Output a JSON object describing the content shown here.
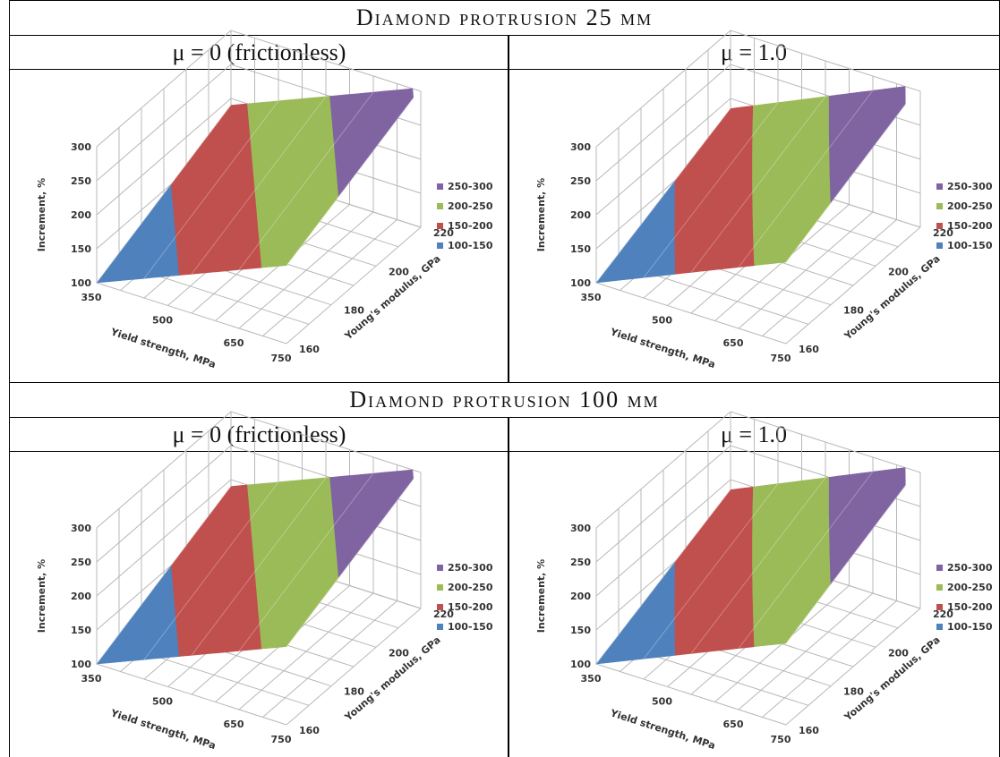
{
  "sections": [
    {
      "title": "Diamond protrusion 25 μm",
      "conditions": [
        "μ = 0 (frictionless)",
        "μ = 1.0"
      ]
    },
    {
      "title": "Diamond protrusion 100 μm",
      "conditions": [
        "μ = 0 (frictionless)",
        "μ = 1.0"
      ]
    }
  ],
  "chart_data": [
    {
      "type": "surface",
      "panel": "25 μm, μ = 0 (frictionless)",
      "xlabel": "Yield strength, MPa",
      "ylabel": "Young's modulus, GPa",
      "zlabel": "Increment, %",
      "x_ticks": [
        "350",
        "500",
        "650",
        "750"
      ],
      "y_ticks": [
        "160",
        "180",
        "200",
        "220"
      ],
      "z_ticks": [
        "100",
        "150",
        "200",
        "250",
        "300"
      ],
      "zlim": [
        100,
        300
      ],
      "legend": [
        {
          "label": "250-300",
          "color": "#8064a2"
        },
        {
          "label": "200-250",
          "color": "#9bbb59"
        },
        {
          "label": "150-200",
          "color": "#c0504d"
        },
        {
          "label": "100-150",
          "color": "#4f81bd"
        }
      ],
      "x_values": [
        350,
        750
      ],
      "y_values": [
        160,
        220
      ],
      "z_grid": [
        [
          100,
          190
        ],
        [
          215,
          305
        ]
      ]
    },
    {
      "type": "surface",
      "panel": "25 μm, μ = 1.0",
      "xlabel": "Yield strength, MPa",
      "ylabel": "Young's modulus, GPa",
      "zlabel": "Increment, %",
      "x_ticks": [
        "350",
        "500",
        "650",
        "750"
      ],
      "y_ticks": [
        "160",
        "180",
        "200",
        "220"
      ],
      "z_ticks": [
        "100",
        "150",
        "200",
        "250",
        "300"
      ],
      "zlim": [
        100,
        300
      ],
      "legend": [
        {
          "label": "250-300",
          "color": "#8064a2"
        },
        {
          "label": "200-250",
          "color": "#9bbb59"
        },
        {
          "label": "150-200",
          "color": "#c0504d"
        },
        {
          "label": "100-150",
          "color": "#4f81bd"
        }
      ],
      "x_values": [
        350,
        750
      ],
      "y_values": [
        160,
        220
      ],
      "z_grid": [
        [
          100,
          185
        ],
        [
          220,
          310
        ]
      ]
    },
    {
      "type": "surface",
      "panel": "100 μm, μ = 0 (frictionless)",
      "xlabel": "Yield strength, MPa",
      "ylabel": "Young's modulus, GPa",
      "zlabel": "Increment, %",
      "x_ticks": [
        "350",
        "500",
        "650",
        "750"
      ],
      "y_ticks": [
        "160",
        "180",
        "200",
        "220"
      ],
      "z_ticks": [
        "100",
        "150",
        "200",
        "250",
        "300"
      ],
      "zlim": [
        100,
        300
      ],
      "legend": [
        {
          "label": "250-300",
          "color": "#8064a2"
        },
        {
          "label": "200-250",
          "color": "#9bbb59"
        },
        {
          "label": "150-200",
          "color": "#c0504d"
        },
        {
          "label": "100-150",
          "color": "#4f81bd"
        }
      ],
      "x_values": [
        350,
        750
      ],
      "y_values": [
        160,
        220
      ],
      "z_grid": [
        [
          100,
          190
        ],
        [
          215,
          305
        ]
      ]
    },
    {
      "type": "surface",
      "panel": "100 μm, μ = 1.0",
      "xlabel": "Yield strength, MPa",
      "ylabel": "Young's modulus, GPa",
      "zlabel": "Increment, %",
      "x_ticks": [
        "350",
        "500",
        "650",
        "750"
      ],
      "y_ticks": [
        "160",
        "180",
        "200",
        "220"
      ],
      "z_ticks": [
        "100",
        "150",
        "200",
        "250",
        "300"
      ],
      "zlim": [
        100,
        300
      ],
      "legend": [
        {
          "label": "250-300",
          "color": "#8064a2"
        },
        {
          "label": "200-250",
          "color": "#9bbb59"
        },
        {
          "label": "150-200",
          "color": "#c0504d"
        },
        {
          "label": "100-150",
          "color": "#4f81bd"
        }
      ],
      "x_values": [
        350,
        750
      ],
      "y_values": [
        160,
        220
      ],
      "z_grid": [
        [
          100,
          185
        ],
        [
          220,
          310
        ]
      ]
    }
  ]
}
